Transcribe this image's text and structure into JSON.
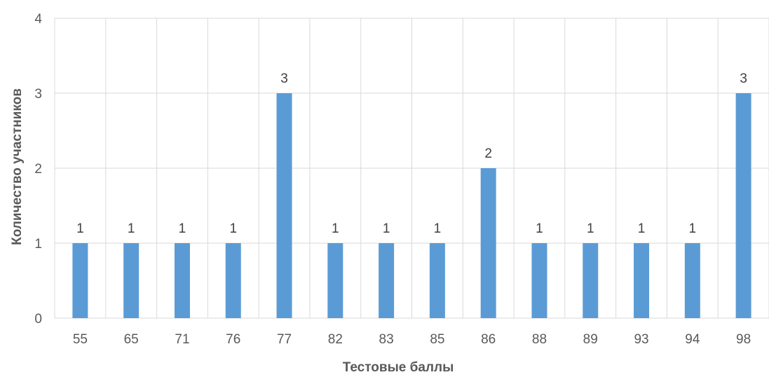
{
  "chart_data": {
    "type": "bar",
    "title": "",
    "xlabel": "Тестовые баллы",
    "ylabel": "Количество участников",
    "categories": [
      "55",
      "65",
      "71",
      "76",
      "77",
      "82",
      "83",
      "85",
      "86",
      "88",
      "89",
      "93",
      "94",
      "98"
    ],
    "values": [
      1,
      1,
      1,
      1,
      3,
      1,
      1,
      1,
      2,
      1,
      1,
      1,
      1,
      3
    ],
    "ylim": [
      0,
      4
    ],
    "yticks": [
      0,
      1,
      2,
      3,
      4
    ],
    "grid": true,
    "legend": "none",
    "data_labels": true,
    "bar_color": "#5b9bd5"
  }
}
